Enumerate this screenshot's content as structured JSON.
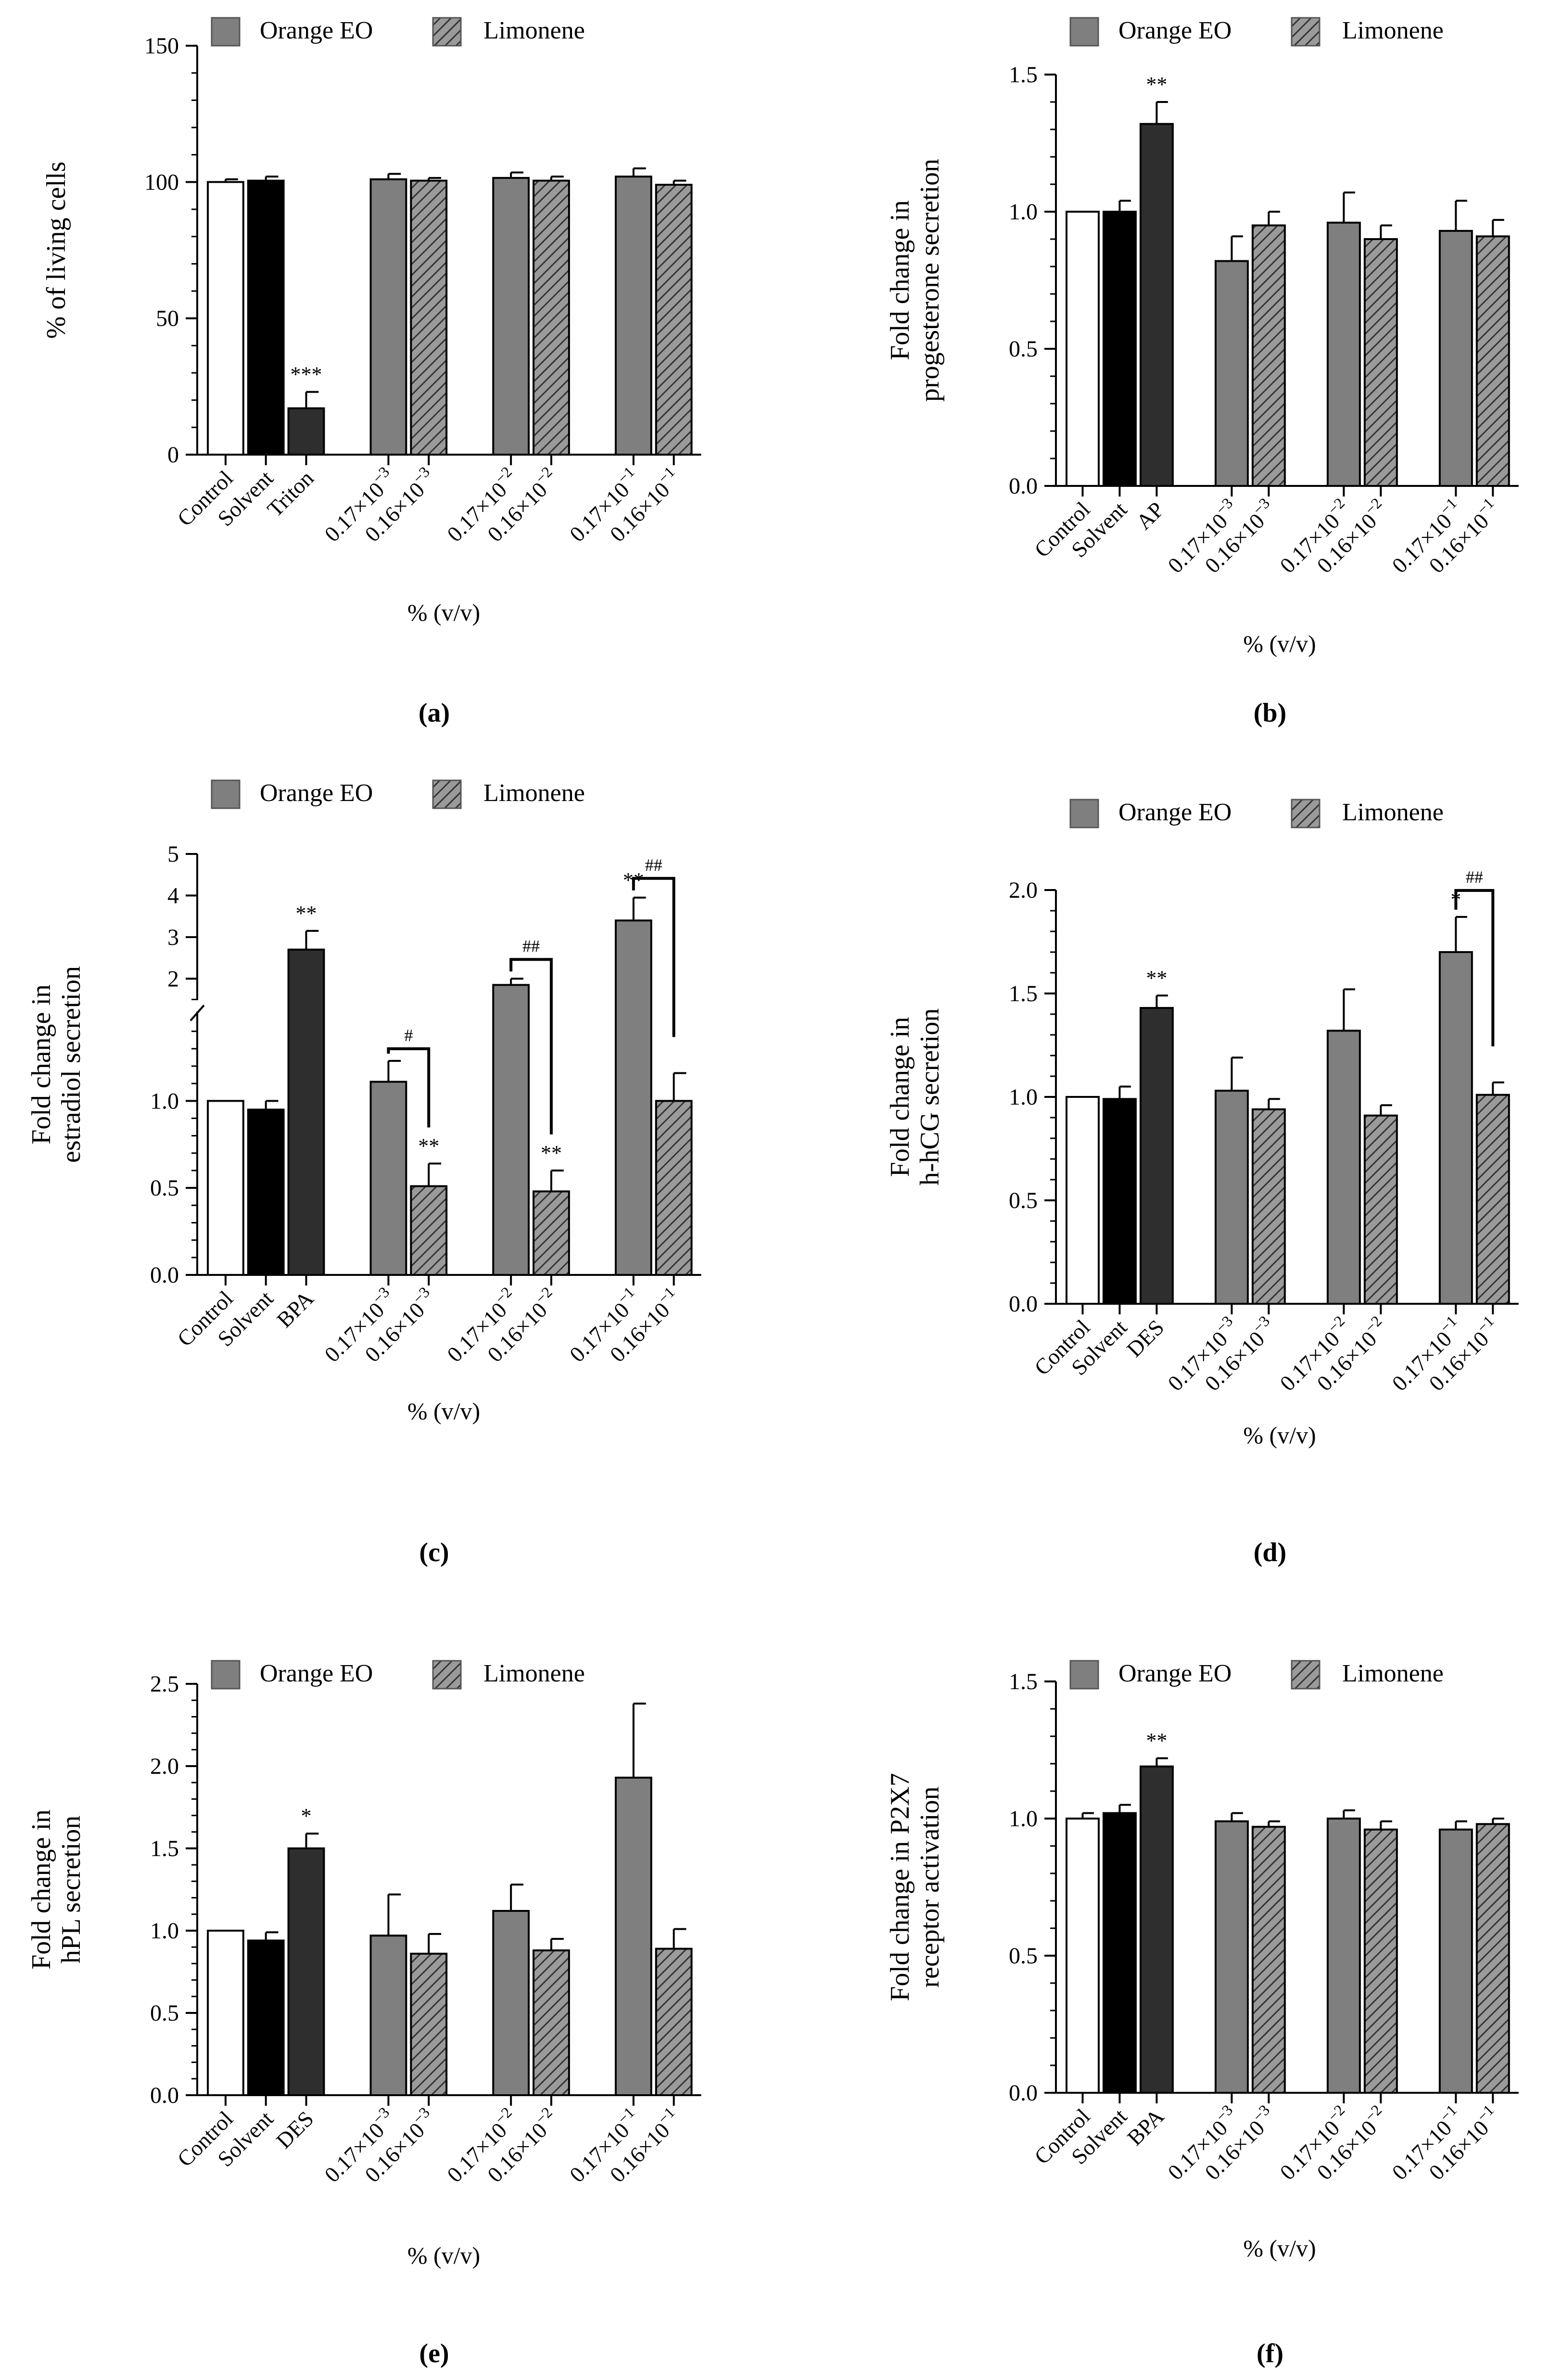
{
  "figure": {
    "background": "#ffffff"
  },
  "legend": {
    "series1": {
      "label": "Orange EO",
      "color": "#7f7f7f"
    },
    "series2": {
      "label": "Limonene",
      "color": "#9a9a9a",
      "pattern": "hatch"
    }
  },
  "categories": [
    "Control",
    "Solvent",
    "Triton",
    "0.17×10",
    "0.16×10",
    "0.17×10",
    "0.16×10",
    "0.17×10",
    "0.16×10"
  ],
  "chart_data": [
    {
      "panel": "(a)",
      "type": "bar",
      "title": "",
      "ylabel": [
        "% of living cells"
      ],
      "xlabel": "% (v/v)",
      "ylim": [
        0,
        150
      ],
      "yticks": [
        "0",
        "50",
        "100",
        "150"
      ],
      "categories": [
        {
          "base": "Control"
        },
        {
          "base": "Solvent"
        },
        {
          "base": "Triton"
        },
        {
          "base": "0.17×10",
          "exp": "−3"
        },
        {
          "base": "0.16×10",
          "exp": "−3"
        },
        {
          "base": "0.17×10",
          "exp": "−2"
        },
        {
          "base": "0.16×10",
          "exp": "−2"
        },
        {
          "base": "0.17×10",
          "exp": "−1"
        },
        {
          "base": "0.16×10",
          "exp": "−1"
        }
      ],
      "fills": [
        "white",
        "black",
        "dark",
        "orange",
        "limonene",
        "orange",
        "limonene",
        "orange",
        "limonene"
      ],
      "values": [
        100,
        100.5,
        17,
        101,
        100.5,
        101.5,
        100.5,
        102,
        99
      ],
      "errors": [
        1,
        1.5,
        6,
        2,
        1,
        2,
        1.5,
        3,
        1.5
      ],
      "significance": [
        "",
        "",
        "***",
        "",
        "",
        "",
        "",
        "",
        ""
      ],
      "brackets": []
    },
    {
      "panel": "(b)",
      "type": "bar",
      "title": "",
      "ylabel": [
        "Fold change in",
        "progesterone secretion"
      ],
      "xlabel": "% (v/v)",
      "ylim": [
        0,
        1.5
      ],
      "yticks": [
        "0.0",
        "0.5",
        "1.0",
        "1.5"
      ],
      "categories": [
        {
          "base": "Control"
        },
        {
          "base": "Solvent"
        },
        {
          "base": "AP"
        },
        {
          "base": "0.17×10",
          "exp": "−3"
        },
        {
          "base": "0.16×10",
          "exp": "−3"
        },
        {
          "base": "0.17×10",
          "exp": "−2"
        },
        {
          "base": "0.16×10",
          "exp": "−2"
        },
        {
          "base": "0.17×10",
          "exp": "−1"
        },
        {
          "base": "0.16×10",
          "exp": "−1"
        }
      ],
      "fills": [
        "white",
        "black",
        "dark",
        "orange",
        "limonene",
        "orange",
        "limonene",
        "orange",
        "limonene"
      ],
      "values": [
        1.0,
        1.0,
        1.32,
        0.82,
        0.95,
        0.96,
        0.9,
        0.93,
        0.91
      ],
      "errors": [
        0,
        0.04,
        0.08,
        0.09,
        0.05,
        0.11,
        0.05,
        0.11,
        0.06
      ],
      "significance": [
        "",
        "",
        "**",
        "",
        "",
        "",
        "",
        "",
        ""
      ],
      "brackets": []
    },
    {
      "panel": "(c)",
      "type": "bar",
      "title": "",
      "ylabel": [
        "Fold change in",
        "estradiol secretion"
      ],
      "xlabel": "% (v/v)",
      "broken_axis": true,
      "ylim": [
        0,
        5
      ],
      "yticks": [
        "0.0",
        "0.5",
        "1.0",
        "2",
        "3",
        "4",
        "5"
      ],
      "categories": [
        {
          "base": "Control"
        },
        {
          "base": "Solvent"
        },
        {
          "base": "BPA"
        },
        {
          "base": "0.17×10",
          "exp": "−3"
        },
        {
          "base": "0.16×10",
          "exp": "−3"
        },
        {
          "base": "0.17×10",
          "exp": "−2"
        },
        {
          "base": "0.16×10",
          "exp": "−2"
        },
        {
          "base": "0.17×10",
          "exp": "−1"
        },
        {
          "base": "0.16×10",
          "exp": "−1"
        }
      ],
      "fills": [
        "white",
        "black",
        "dark",
        "orange",
        "limonene",
        "orange",
        "limonene",
        "orange",
        "limonene"
      ],
      "values": [
        1.0,
        0.95,
        2.7,
        1.11,
        0.51,
        1.85,
        0.48,
        3.4,
        1.0
      ],
      "errors": [
        0,
        0.05,
        0.45,
        0.12,
        0.13,
        0.15,
        0.12,
        0.55,
        0.16
      ],
      "significance": [
        "",
        "",
        "**",
        "",
        "**",
        "",
        "**",
        "**",
        ""
      ],
      "brackets": [
        {
          "from": 3,
          "to": 4,
          "label": "#"
        },
        {
          "from": 5,
          "to": 6,
          "label": "##"
        },
        {
          "from": 7,
          "to": 8,
          "label": "##"
        }
      ]
    },
    {
      "panel": "(d)",
      "type": "bar",
      "title": "",
      "ylabel": [
        "Fold change in",
        "h-hCG secretion"
      ],
      "xlabel": "% (v/v)",
      "ylim": [
        0,
        2.0
      ],
      "yticks": [
        "0.0",
        "0.5",
        "1.0",
        "1.5",
        "2.0"
      ],
      "categories": [
        {
          "base": "Control"
        },
        {
          "base": "Solvent"
        },
        {
          "base": "DES"
        },
        {
          "base": "0.17×10",
          "exp": "−3"
        },
        {
          "base": "0.16×10",
          "exp": "−3"
        },
        {
          "base": "0.17×10",
          "exp": "−2"
        },
        {
          "base": "0.16×10",
          "exp": "−2"
        },
        {
          "base": "0.17×10",
          "exp": "−1"
        },
        {
          "base": "0.16×10",
          "exp": "−1"
        }
      ],
      "fills": [
        "white",
        "black",
        "dark",
        "orange",
        "limonene",
        "orange",
        "limonene",
        "orange",
        "limonene"
      ],
      "values": [
        1.0,
        0.99,
        1.43,
        1.03,
        0.94,
        1.32,
        0.91,
        1.7,
        1.01
      ],
      "errors": [
        0,
        0.06,
        0.06,
        0.16,
        0.05,
        0.2,
        0.05,
        0.17,
        0.06
      ],
      "significance": [
        "",
        "",
        "**",
        "",
        "",
        "",
        "",
        "*",
        ""
      ],
      "brackets": [
        {
          "from": 7,
          "to": 8,
          "label": "##"
        }
      ]
    },
    {
      "panel": "(e)",
      "type": "bar",
      "title": "",
      "ylabel": [
        "Fold change in",
        "hPL secretion"
      ],
      "xlabel": "% (v/v)",
      "ylim": [
        0,
        2.5
      ],
      "yticks": [
        "0.0",
        "0.5",
        "1.0",
        "1.5",
        "2.0",
        "2.5"
      ],
      "categories": [
        {
          "base": "Control"
        },
        {
          "base": "Solvent"
        },
        {
          "base": "DES"
        },
        {
          "base": "0.17×10",
          "exp": "−3"
        },
        {
          "base": "0.16×10",
          "exp": "−3"
        },
        {
          "base": "0.17×10",
          "exp": "−2"
        },
        {
          "base": "0.16×10",
          "exp": "−2"
        },
        {
          "base": "0.17×10",
          "exp": "−1"
        },
        {
          "base": "0.16×10",
          "exp": "−1"
        }
      ],
      "fills": [
        "white",
        "black",
        "dark",
        "orange",
        "limonene",
        "orange",
        "limonene",
        "orange",
        "limonene"
      ],
      "values": [
        1.0,
        0.94,
        1.5,
        0.97,
        0.86,
        1.12,
        0.88,
        1.93,
        0.89
      ],
      "errors": [
        0,
        0.05,
        0.09,
        0.25,
        0.12,
        0.16,
        0.07,
        0.45,
        0.12
      ],
      "significance": [
        "",
        "",
        "*",
        "",
        "",
        "",
        "",
        "",
        ""
      ],
      "brackets": []
    },
    {
      "panel": "(f)",
      "type": "bar",
      "title": "",
      "ylabel": [
        "Fold change in P2X7",
        "receptor activation"
      ],
      "xlabel": "% (v/v)",
      "ylim": [
        0,
        1.5
      ],
      "yticks": [
        "0.0",
        "0.5",
        "1.0",
        "1.5"
      ],
      "categories": [
        {
          "base": "Control"
        },
        {
          "base": "Solvent"
        },
        {
          "base": "BPA"
        },
        {
          "base": "0.17×10",
          "exp": "−3"
        },
        {
          "base": "0.16×10",
          "exp": "−3"
        },
        {
          "base": "0.17×10",
          "exp": "−2"
        },
        {
          "base": "0.16×10",
          "exp": "−2"
        },
        {
          "base": "0.17×10",
          "exp": "−1"
        },
        {
          "base": "0.16×10",
          "exp": "−1"
        }
      ],
      "fills": [
        "white",
        "black",
        "dark",
        "orange",
        "limonene",
        "orange",
        "limonene",
        "orange",
        "limonene"
      ],
      "values": [
        1.0,
        1.02,
        1.19,
        0.99,
        0.97,
        1.0,
        0.96,
        0.96,
        0.98
      ],
      "errors": [
        0.02,
        0.03,
        0.03,
        0.03,
        0.02,
        0.03,
        0.03,
        0.03,
        0.02
      ],
      "significance": [
        "",
        "",
        "**",
        "",
        "",
        "",
        "",
        "",
        ""
      ],
      "brackets": []
    }
  ]
}
